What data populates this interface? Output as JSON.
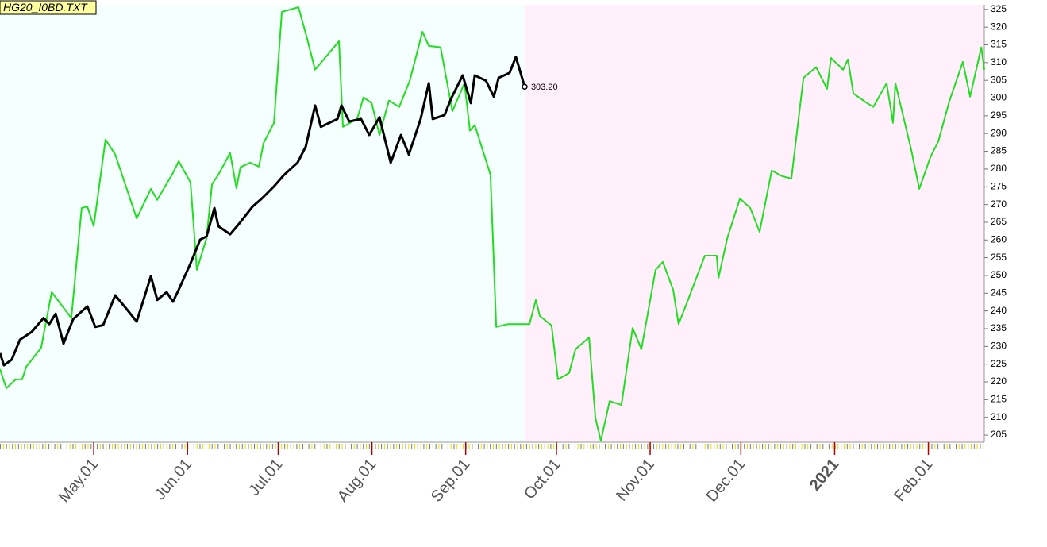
{
  "chart_data": {
    "type": "line",
    "title": "HG20_I0BD.TXT",
    "series": [
      {
        "name": "HG20",
        "color": "#22dd22",
        "x": [
          -1,
          1.1,
          4.2,
          6.3,
          7.7,
          12.6,
          16.1,
          22.6,
          26,
          27.9,
          30,
          33.9,
          37.1,
          44.2,
          48.9,
          51,
          56.2,
          58.1,
          62,
          64.1,
          67.3,
          69.1,
          71.2,
          75.1,
          77.2,
          78.5,
          81.7,
          84.6,
          86.2,
          89.6,
          92.2,
          97.7,
          100.3,
          103.2,
          111.1,
          112.4,
          117.1,
          119.2,
          121.9,
          124.5,
          127.6,
          131,
          134.5,
          138.7,
          140.8,
          144.7,
          148.6,
          152.6,
          154.4,
          156,
          161.2,
          163.1,
          167,
          174.1,
          176.2,
          177.5,
          181.4,
          183.5,
          187.2,
          189.3,
          193.8,
          195.9,
          197.7,
          200.6,
          204.5,
          208.2,
          211.1,
          215.8,
          218.2,
          221.6,
          223.4,
          226.3,
          230,
          232.1,
          236,
          236.6,
          239.5,
          243.7,
          247.1,
          250.2,
          254.2,
          257.6,
          260.7,
          264.7,
          268.9,
          272.5,
          273.8,
          277.8,
          279.4,
          281.2,
          285.7,
          287.8,
          292.2,
          294.3,
          295.1,
          300.4,
          303,
          306.7,
          309.3,
          312.9,
          317.4,
          319.8,
          323.5,
          324.5
        ],
        "values": [
          223.6,
          218.2,
          220.7,
          220.7,
          224.3,
          229.6,
          245.3,
          238.0,
          269.0,
          269.4,
          263.9,
          288.3,
          284.1,
          266.1,
          274.4,
          271.3,
          278.9,
          282.2,
          276.2,
          251.6,
          260.5,
          275.7,
          278.4,
          284.5,
          274.6,
          280.5,
          281.8,
          280.7,
          287.4,
          293.0,
          324.3,
          325.6,
          317.6,
          308.0,
          316.0,
          291.9,
          294.1,
          300.2,
          298.6,
          289.6,
          299.3,
          297.5,
          304.9,
          318.7,
          314.7,
          314.3,
          296.3,
          304.2,
          290.8,
          292.4,
          278.4,
          235.5,
          236.3,
          236.3,
          243.1,
          238.6,
          235.9,
          220.7,
          222.5,
          229.2,
          232.5,
          209.8,
          203.4,
          214.6,
          213.5,
          235.2,
          229.2,
          251.6,
          253.8,
          246.0,
          236.3,
          242.6,
          250.9,
          255.6,
          255.6,
          249.3,
          260.5,
          271.7,
          269.0,
          262.3,
          279.6,
          278.0,
          277.3,
          305.7,
          308.7,
          302.6,
          311.3,
          308.0,
          310.9,
          301.3,
          298.6,
          297.5,
          304.2,
          293.0,
          304.2,
          285.2,
          274.4,
          283.4,
          287.8,
          299.0,
          310.2,
          300.4,
          314.3,
          308.0
        ]
      },
      {
        "name": "HG20 I0BD",
        "color": "#000000",
        "x": [
          -1,
          0.3,
          2.9,
          5.6,
          9.5,
          13.4,
          15.3,
          17.4,
          20,
          23.2,
          27.9,
          30.5,
          33.1,
          37.1,
          41,
          44.2,
          48.9,
          51,
          54.1,
          56.2,
          58.1,
          62,
          65.2,
          67.3,
          69.9,
          71.2,
          75.1,
          77.8,
          82.5,
          85.6,
          89.6,
          93,
          97.4,
          100.1,
          103.2,
          105.1,
          110.6,
          111.9,
          114.5,
          118.4,
          121.1,
          124.5,
          128.2,
          131.6,
          134.2,
          138.1,
          140.8,
          142.1,
          146,
          148.1,
          152,
          154.7,
          156,
          159.7,
          162.3,
          163.9,
          167.5,
          169.6,
          172.5
        ],
        "values": [
          228.1,
          224.7,
          226.3,
          231.9,
          234.1,
          238.0,
          236.3,
          239.2,
          230.8,
          237.7,
          241.3,
          235.5,
          236.0,
          244.4,
          240.4,
          237.0,
          249.8,
          243.1,
          245.3,
          242.6,
          246.0,
          253.4,
          260.1,
          261.0,
          269.0,
          263.9,
          261.6,
          264.3,
          269.4,
          271.7,
          275.1,
          278.4,
          281.8,
          286.3,
          297.9,
          291.9,
          294.1,
          297.9,
          293.4,
          294.1,
          289.6,
          294.6,
          281.8,
          289.6,
          284.1,
          294.1,
          304.2,
          294.1,
          295.2,
          299.7,
          306.4,
          298.6,
          306.4,
          304.9,
          300.4,
          305.7,
          307.1,
          311.6,
          303.2
        ]
      }
    ],
    "annotation": {
      "text": "303.20",
      "x": 172.5,
      "y": 303.2
    },
    "xlim": [
      -1,
      324.5
    ],
    "xticks": [
      {
        "value": 30,
        "label": "May.01"
      },
      {
        "value": 61,
        "label": "Jun.01"
      },
      {
        "value": 91,
        "label": "Jul.01"
      },
      {
        "value": 122,
        "label": "Aug.01"
      },
      {
        "value": 153,
        "label": "Sep.01"
      },
      {
        "value": 183,
        "label": "Oct.01"
      },
      {
        "value": 214,
        "label": "Nov.01"
      },
      {
        "value": 244,
        "label": "Dec.01"
      },
      {
        "value": 275,
        "label": "2021"
      },
      {
        "value": 306,
        "label": "Feb.01"
      }
    ],
    "ylim": [
      203,
      326.3
    ],
    "yticks": [
      205,
      210,
      215,
      220,
      225,
      230,
      235,
      240,
      245,
      250,
      255,
      260,
      265,
      270,
      275,
      280,
      285,
      290,
      295,
      300,
      305,
      310,
      315,
      320,
      325
    ]
  }
}
